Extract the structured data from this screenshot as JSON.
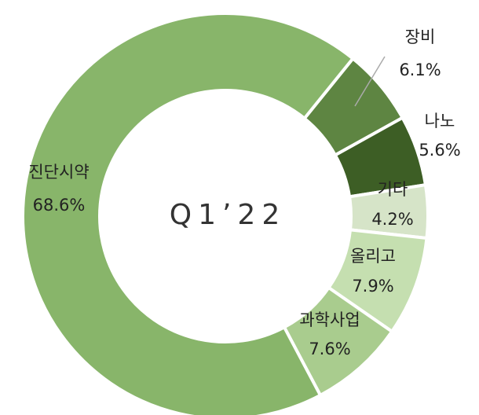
{
  "chart_data": {
    "type": "donut",
    "title": "Q1’22",
    "categories": [
      "장비",
      "나노",
      "기타",
      "올리고",
      "과학사업",
      "진단시약"
    ],
    "values": [
      6.1,
      5.6,
      4.2,
      7.9,
      7.6,
      68.6
    ],
    "value_labels": [
      "6.1%",
      "5.6%",
      "4.2%",
      "7.9%",
      "7.6%",
      "68.6%"
    ],
    "colors": [
      "#5e8542",
      "#3d5e25",
      "#d6e4c8",
      "#c5dfb0",
      "#a9cc8e",
      "#88b56a"
    ]
  }
}
